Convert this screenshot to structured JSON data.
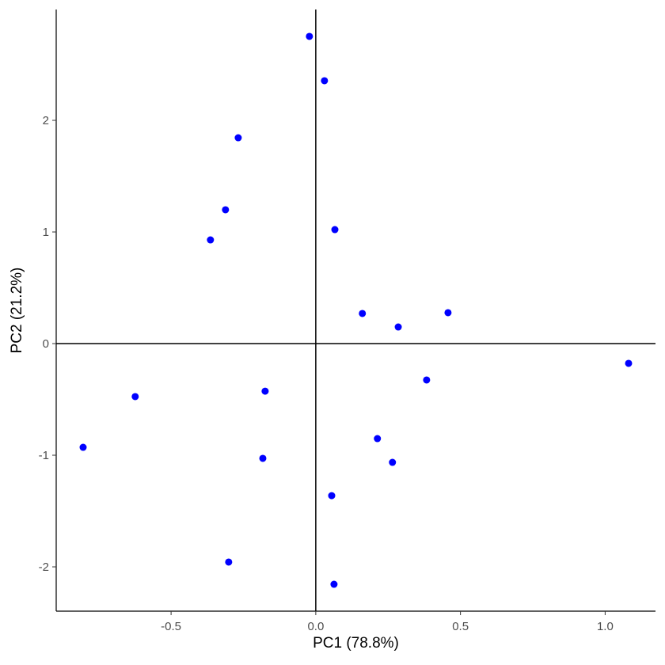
{
  "chart_data": {
    "type": "scatter",
    "xlabel": "PC1 (78.8%)",
    "ylabel": "PC2 (21.2%)",
    "x": [
      -0.022,
      0.03,
      -0.268,
      -0.312,
      -0.364,
      0.066,
      0.161,
      0.285,
      0.457,
      1.081,
      0.383,
      -0.175,
      -0.624,
      -0.804,
      0.213,
      -0.183,
      0.265,
      0.055,
      -0.301,
      0.063
    ],
    "values": [
      2.752,
      2.355,
      1.844,
      1.199,
      0.929,
      1.021,
      0.27,
      0.149,
      0.277,
      -0.177,
      -0.326,
      -0.426,
      -0.475,
      -0.929,
      -0.851,
      -1.028,
      -1.064,
      -1.362,
      -1.957,
      -2.156
    ],
    "color": "#0000ff",
    "xlim": [
      -0.897,
      1.174
    ],
    "ylim": [
      -2.397,
      2.993
    ],
    "xticks": [
      -0.5,
      {
        "value": 0,
        "label": "0.0"
      },
      0.5,
      {
        "value": 1,
        "label": "1.0"
      }
    ],
    "yticks": [
      -2,
      -1,
      0,
      1,
      2
    ],
    "grid": false
  }
}
